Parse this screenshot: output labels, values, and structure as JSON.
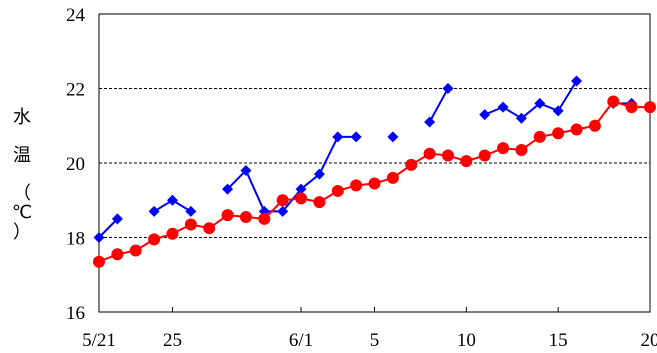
{
  "chart_data": {
    "type": "line",
    "title": "",
    "xlabel": "",
    "ylabel": "水温（℃）",
    "ylabel_chars": [
      "水",
      "温",
      "（",
      "℃",
      "）"
    ],
    "x_day_range": [
      "5/21",
      "6/20"
    ],
    "ylim": [
      16,
      24
    ],
    "yticks": [
      16,
      18,
      20,
      22,
      24
    ],
    "yticks_text": [
      "16",
      "18",
      "20",
      "22",
      "24"
    ],
    "xticks": [
      {
        "date": "5/21",
        "label": "5/21"
      },
      {
        "date": "5/25",
        "label": "25"
      },
      {
        "date": "6/1",
        "label": "6/1"
      },
      {
        "date": "6/5",
        "label": "5"
      },
      {
        "date": "6/10",
        "label": "10"
      },
      {
        "date": "6/15",
        "label": "15"
      },
      {
        "date": "6/20",
        "label": "20"
      }
    ],
    "grid": "horizontal dashed at 18, 20, 22, 24",
    "legend": "none",
    "series": [
      {
        "color": "#0000ff",
        "marker": "diamond",
        "points": [
          {
            "x": "5/21",
            "y": 18.0
          },
          {
            "x": "5/22",
            "y": 18.5
          },
          {
            "x": "5/23",
            "y": null
          },
          {
            "x": "5/24",
            "y": 18.7
          },
          {
            "x": "5/25",
            "y": 19.0
          },
          {
            "x": "5/26",
            "y": 18.7
          },
          {
            "x": "5/27",
            "y": null
          },
          {
            "x": "5/28",
            "y": 19.3
          },
          {
            "x": "5/29",
            "y": 19.8
          },
          {
            "x": "5/30",
            "y": 18.7
          },
          {
            "x": "5/31",
            "y": 18.7
          },
          {
            "x": "6/1",
            "y": 19.3
          },
          {
            "x": "6/2",
            "y": 19.7
          },
          {
            "x": "6/3",
            "y": 20.7
          },
          {
            "x": "6/4",
            "y": 20.7
          },
          {
            "x": "6/5",
            "y": null
          },
          {
            "x": "6/6",
            "y": 20.7
          },
          {
            "x": "6/7",
            "y": null
          },
          {
            "x": "6/8",
            "y": 21.1
          },
          {
            "x": "6/9",
            "y": 22.0
          },
          {
            "x": "6/10",
            "y": null
          },
          {
            "x": "6/11",
            "y": 21.3
          },
          {
            "x": "6/12",
            "y": 21.5
          },
          {
            "x": "6/13",
            "y": 21.2
          },
          {
            "x": "6/14",
            "y": 21.6
          },
          {
            "x": "6/15",
            "y": 21.4
          },
          {
            "x": "6/16",
            "y": 22.2
          },
          {
            "x": "6/17",
            "y": null
          },
          {
            "x": "6/18",
            "y": 21.6
          },
          {
            "x": "6/19",
            "y": 21.6
          },
          {
            "x": "6/20",
            "y": null
          }
        ]
      },
      {
        "color": "#ff0000",
        "marker": "circle",
        "points": [
          {
            "x": "5/21",
            "y": 17.35
          },
          {
            "x": "5/22",
            "y": 17.55
          },
          {
            "x": "5/23",
            "y": 17.65
          },
          {
            "x": "5/24",
            "y": 17.95
          },
          {
            "x": "5/25",
            "y": 18.1
          },
          {
            "x": "5/26",
            "y": 18.35
          },
          {
            "x": "5/27",
            "y": 18.25
          },
          {
            "x": "5/28",
            "y": 18.6
          },
          {
            "x": "5/29",
            "y": 18.55
          },
          {
            "x": "5/30",
            "y": 18.5
          },
          {
            "x": "5/31",
            "y": 19.0
          },
          {
            "x": "6/1",
            "y": 19.05
          },
          {
            "x": "6/2",
            "y": 18.95
          },
          {
            "x": "6/3",
            "y": 19.25
          },
          {
            "x": "6/4",
            "y": 19.4
          },
          {
            "x": "6/5",
            "y": 19.45
          },
          {
            "x": "6/6",
            "y": 19.6
          },
          {
            "x": "6/7",
            "y": 19.95
          },
          {
            "x": "6/8",
            "y": 20.25
          },
          {
            "x": "6/9",
            "y": 20.2
          },
          {
            "x": "6/10",
            "y": 20.05
          },
          {
            "x": "6/11",
            "y": 20.2
          },
          {
            "x": "6/12",
            "y": 20.4
          },
          {
            "x": "6/13",
            "y": 20.35
          },
          {
            "x": "6/14",
            "y": 20.7
          },
          {
            "x": "6/15",
            "y": 20.8
          },
          {
            "x": "6/16",
            "y": 20.9
          },
          {
            "x": "6/17",
            "y": 21.0
          },
          {
            "x": "6/18",
            "y": 21.65
          },
          {
            "x": "6/19",
            "y": 21.5
          },
          {
            "x": "6/20",
            "y": 21.5
          }
        ]
      }
    ]
  }
}
